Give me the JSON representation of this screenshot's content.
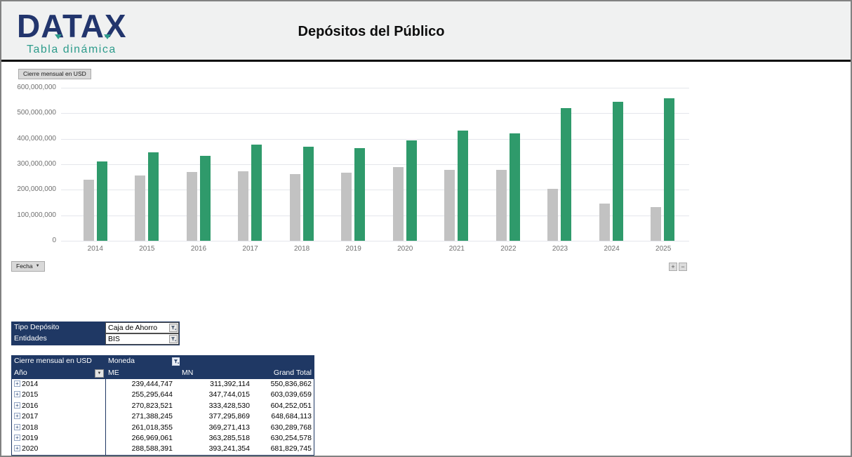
{
  "header": {
    "logo": "DATAX",
    "tagline": "Tabla dinámica",
    "title": "Depósitos del Público"
  },
  "chart": {
    "field_button": "Cierre mensual en USD",
    "axis_field_button": "Fecha",
    "expand_label": "+",
    "collapse_label": "−"
  },
  "chart_data": {
    "type": "bar",
    "title": "Cierre mensual en USD",
    "categories": [
      "2014",
      "2015",
      "2016",
      "2017",
      "2018",
      "2019",
      "2020",
      "2021",
      "2022",
      "2023",
      "2024",
      "2025"
    ],
    "series": [
      {
        "name": "ME",
        "color": "#C2C2C2",
        "values": [
          239444747,
          255295644,
          270823521,
          271388245,
          261018355,
          266969061,
          288588391,
          279000000,
          277000000,
          205000000,
          146000000,
          131000000
        ]
      },
      {
        "name": "MN",
        "color": "#2F9A6B",
        "values": [
          311392114,
          347744015,
          333428530,
          377295869,
          369271413,
          363285518,
          393241354,
          431000000,
          422000000,
          520000000,
          545000000,
          560000000
        ]
      }
    ],
    "ylim": [
      0,
      600000000
    ],
    "y_ticks": [
      "600,000,000",
      "500,000,000",
      "400,000,000",
      "300,000,000",
      "200,000,000",
      "100,000,000",
      "0"
    ],
    "grid": true,
    "legend": false
  },
  "filters": {
    "rows": [
      {
        "label": "Tipo Depósito",
        "value": "Caja de Ahorro"
      },
      {
        "label": "Entidades",
        "value": "BIS"
      }
    ]
  },
  "pivot": {
    "value_field": "Cierre mensual en USD",
    "column_field": "Moneda",
    "row_field": "Año",
    "expand_icon": "+",
    "columns": [
      "ME",
      "MN",
      "Grand Total"
    ],
    "rows": [
      {
        "year": "2014",
        "values": [
          "239,444,747",
          "311,392,114",
          "550,836,862"
        ]
      },
      {
        "year": "2015",
        "values": [
          "255,295,644",
          "347,744,015",
          "603,039,659"
        ]
      },
      {
        "year": "2016",
        "values": [
          "270,823,521",
          "333,428,530",
          "604,252,051"
        ]
      },
      {
        "year": "2017",
        "values": [
          "271,388,245",
          "377,295,869",
          "648,684,113"
        ]
      },
      {
        "year": "2018",
        "values": [
          "261,018,355",
          "369,271,413",
          "630,289,768"
        ]
      },
      {
        "year": "2019",
        "values": [
          "266,969,061",
          "363,285,518",
          "630,254,578"
        ]
      },
      {
        "year": "2020",
        "values": [
          "288,588,391",
          "393,241,354",
          "681,829,745"
        ]
      }
    ]
  },
  "colors": {
    "navy": "#1F3864",
    "teal": "#2E9C8C",
    "bar_me": "#C2C2C2",
    "bar_mn": "#2F9A6B"
  }
}
